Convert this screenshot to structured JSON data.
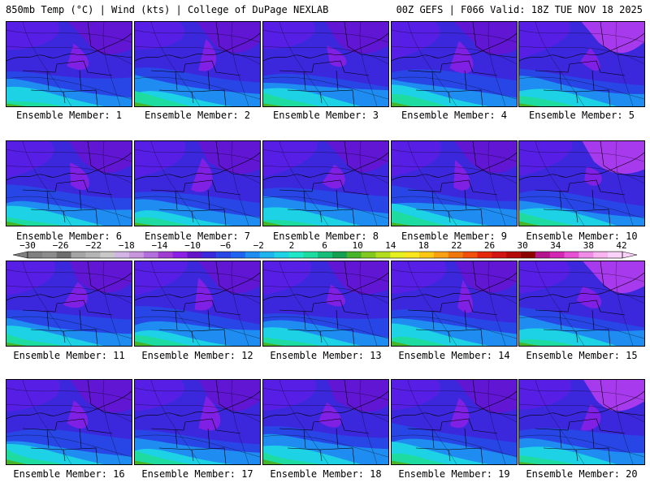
{
  "header": {
    "left": "850mb Temp (°C) | Wind (kts) | College of DuPage NEXLAB",
    "right": "00Z GEFS | F066 Valid: 18Z TUE NOV 18 2025"
  },
  "panels": [
    {
      "label": "Ensemble Member: 1"
    },
    {
      "label": "Ensemble Member: 2"
    },
    {
      "label": "Ensemble Member: 3"
    },
    {
      "label": "Ensemble Member: 4"
    },
    {
      "label": "Ensemble Member: 5"
    },
    {
      "label": "Ensemble Member: 6"
    },
    {
      "label": "Ensemble Member: 7"
    },
    {
      "label": "Ensemble Member: 8"
    },
    {
      "label": "Ensemble Member: 9"
    },
    {
      "label": "Ensemble Member: 10"
    },
    {
      "label": "Ensemble Member: 11"
    },
    {
      "label": "Ensemble Member: 12"
    },
    {
      "label": "Ensemble Member: 13"
    },
    {
      "label": "Ensemble Member: 14"
    },
    {
      "label": "Ensemble Member: 15"
    },
    {
      "label": "Ensemble Member: 16"
    },
    {
      "label": "Ensemble Member: 17"
    },
    {
      "label": "Ensemble Member: 18"
    },
    {
      "label": "Ensemble Member: 19"
    },
    {
      "label": "Ensemble Member: 20"
    }
  ],
  "colorbar": {
    "labels": [
      "−30",
      "−26",
      "−22",
      "−18",
      "−14",
      "−10",
      "−6",
      "−2",
      "2",
      "6",
      "10",
      "14",
      "18",
      "22",
      "26",
      "30",
      "34",
      "38",
      "42"
    ],
    "colors": [
      "#7f7f7f",
      "#8c8c8c",
      "#6e6e6e",
      "#a5a5a5",
      "#b4b4b4",
      "#c8c8c8",
      "#d2b4e6",
      "#c896dc",
      "#b46ede",
      "#a03cd2",
      "#8c1ee6",
      "#6414c8",
      "#3c28dc",
      "#2846e6",
      "#1e64f0",
      "#1e8cf0",
      "#1eb4f0",
      "#1ed2e6",
      "#1ee6c8",
      "#1edca0",
      "#14be78",
      "#14a050",
      "#46b428",
      "#82c81e",
      "#b4dc1e",
      "#e6f01e",
      "#fae61e",
      "#fac814",
      "#faa014",
      "#f0780a",
      "#f0500a",
      "#e6280a",
      "#d21414",
      "#b40a0a",
      "#8c0000",
      "#b4148c",
      "#d228b4",
      "#e650d2",
      "#f08ce6",
      "#fab4f0",
      "#fad2fa"
    ]
  }
}
